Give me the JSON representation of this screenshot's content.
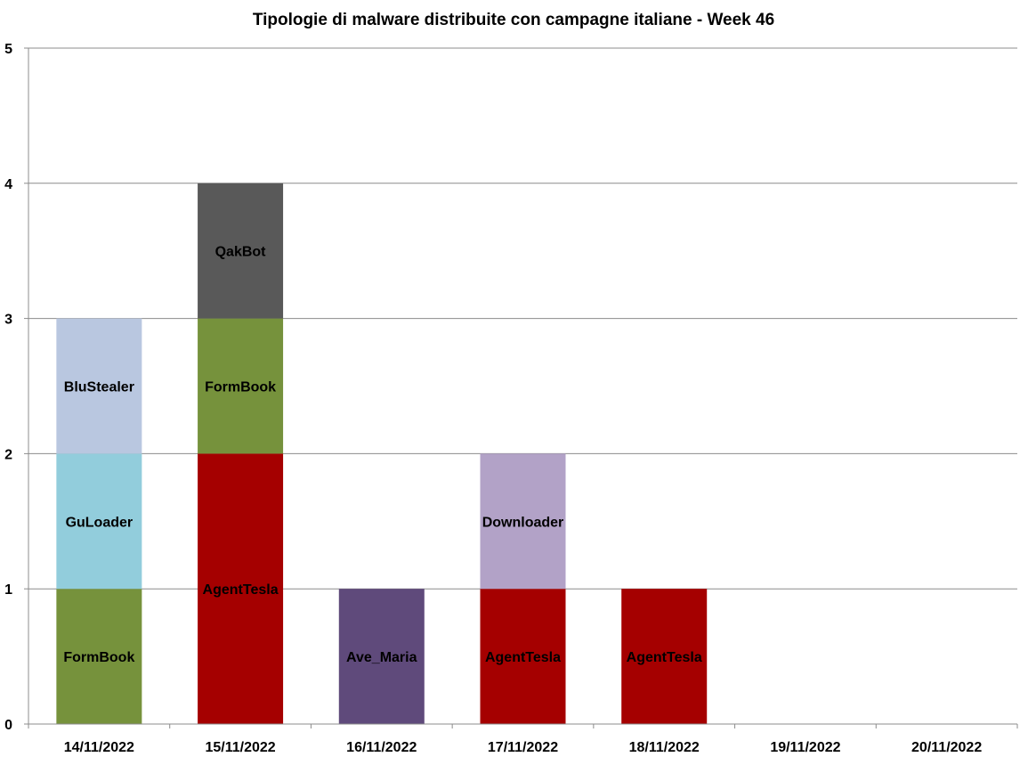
{
  "chart_data": {
    "type": "bar",
    "stacked": true,
    "title": "Tipologie di malware distribuite con campagne italiane - Week 46",
    "xlabel": "",
    "ylabel": "",
    "ylim": [
      0,
      5
    ],
    "yticks": [
      "0",
      "1",
      "2",
      "3",
      "4",
      "5"
    ],
    "grid": true,
    "categories": [
      "14/11/2022",
      "15/11/2022",
      "16/11/2022",
      "17/11/2022",
      "18/11/2022",
      "19/11/2022",
      "20/11/2022"
    ],
    "stacks": [
      [
        {
          "label": "FormBook",
          "value": 1,
          "color": "#76923c"
        },
        {
          "label": "GuLoader",
          "value": 1,
          "color": "#92cddc"
        },
        {
          "label": "BluStealer",
          "value": 1,
          "color": "#b9c7e0"
        }
      ],
      [
        {
          "label": "AgentTesla",
          "value": 2,
          "color": "#a50000"
        },
        {
          "label": "FormBook",
          "value": 1,
          "color": "#76923c"
        },
        {
          "label": "QakBot",
          "value": 1,
          "color": "#595959"
        }
      ],
      [
        {
          "label": "Ave_Maria",
          "value": 1,
          "color": "#5f4a7b"
        }
      ],
      [
        {
          "label": "AgentTesla",
          "value": 1,
          "color": "#a50000"
        },
        {
          "label": "Downloader",
          "value": 1,
          "color": "#b2a2c7"
        }
      ],
      [
        {
          "label": "AgentTesla",
          "value": 1,
          "color": "#a50000"
        }
      ],
      [],
      []
    ]
  }
}
